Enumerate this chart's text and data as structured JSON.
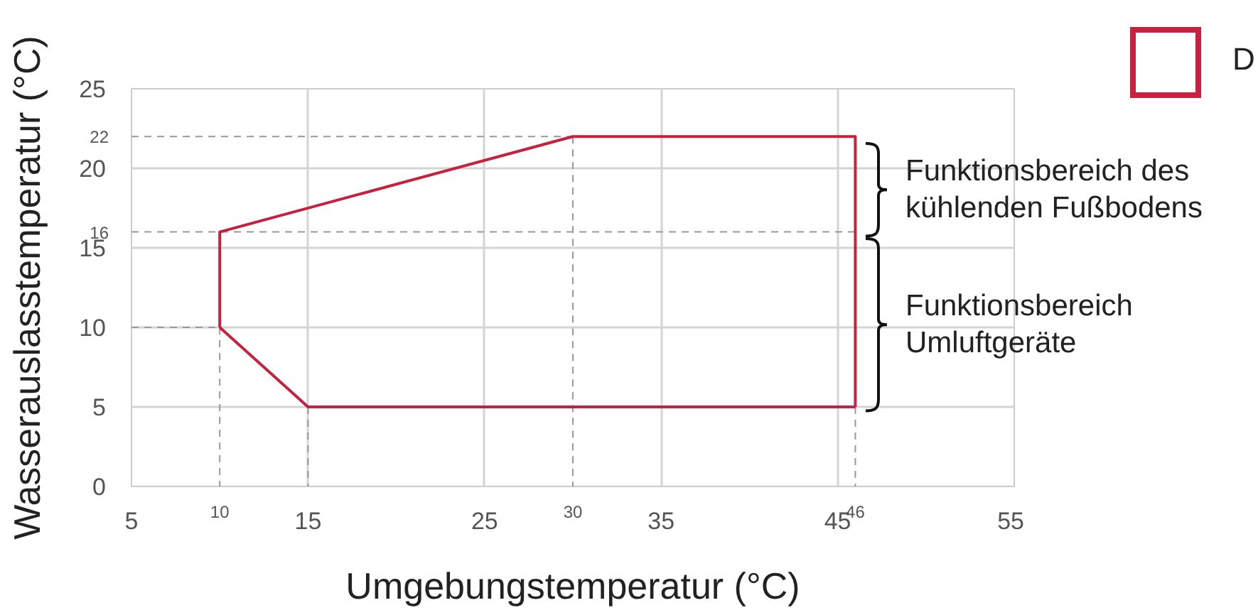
{
  "chart_data": {
    "type": "line",
    "xlabel": "Umgebungstemperatur (°C)",
    "ylabel": "Wasserauslasstemperatur (°C)",
    "xlim": [
      5,
      55
    ],
    "ylim": [
      0,
      25
    ],
    "xticks": [
      5,
      {
        "value": 10,
        "label": "10"
      },
      15,
      25,
      {
        "value": 30,
        "label": "30"
      },
      35,
      45,
      {
        "value": 46,
        "label": "46"
      },
      55
    ],
    "yticks": [
      0,
      5,
      10,
      15,
      {
        "value": 16,
        "label": "16"
      },
      20,
      {
        "value": 22,
        "label": "22"
      },
      25
    ],
    "grid": true,
    "marker": "none",
    "series": [
      {
        "color": "#999999",
        "x": [
          5,
          30
        ],
        "values": [
          22,
          22
        ],
        "line_style": "dashed"
      },
      {
        "color": "#999999",
        "x": [
          5,
          46
        ],
        "values": [
          16,
          16
        ],
        "line_style": "dashed"
      },
      {
        "color": "#999999",
        "x": [
          5,
          10
        ],
        "values": [
          10,
          10
        ],
        "line_style": "dashed"
      },
      {
        "color": "#999999",
        "x": [
          10,
          10
        ],
        "values": [
          10,
          0
        ],
        "line_style": "dashed"
      },
      {
        "color": "#999999",
        "x": [
          15,
          15
        ],
        "values": [
          5,
          0
        ],
        "line_style": "dashed"
      },
      {
        "color": "#999999",
        "x": [
          30,
          30
        ],
        "values": [
          22,
          0
        ],
        "line_style": "dashed"
      },
      {
        "color": "#999999",
        "x": [
          46,
          46
        ],
        "values": [
          5,
          0
        ],
        "line_style": "dashed"
      },
      {
        "color": "#c8203f",
        "x": [
          10,
          10,
          30,
          46,
          46
        ],
        "values": [
          10,
          16,
          22,
          22,
          5
        ],
        "line_style": "solid"
      },
      {
        "color": "#c8203f",
        "x": [
          10,
          15,
          46
        ],
        "values": [
          10,
          5,
          5
        ],
        "line_style": "solid"
      }
    ],
    "annotations": [
      "D",
      "Funktionsbereich des kühlenden Fußbodens",
      "Funktionsbereich Umluftgeräte"
    ]
  }
}
